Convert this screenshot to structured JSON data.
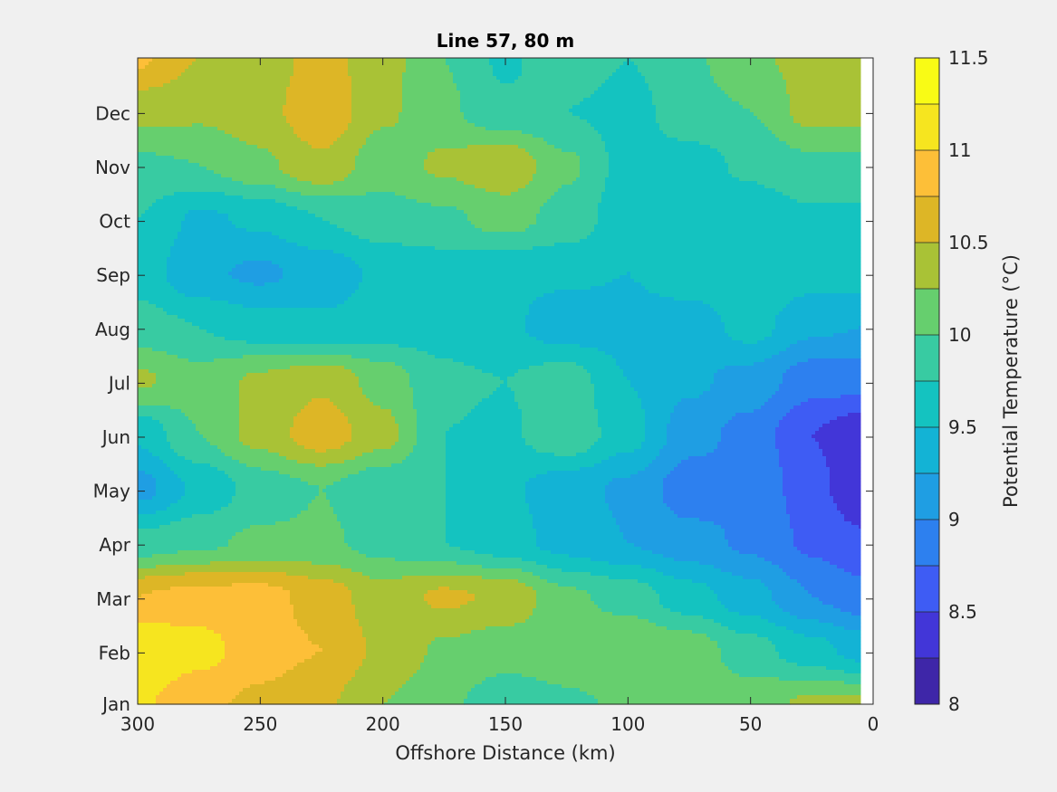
{
  "chart_data": {
    "type": "heatmap",
    "subtype": "filled-contour",
    "title": "Line 57, 80 m",
    "xlabel": "Offshore Distance (km)",
    "ylabel": "",
    "x_reversed": true,
    "xlim": [
      0,
      300
    ],
    "x_data_extent": [
      5,
      300
    ],
    "xticks": [
      300,
      250,
      200,
      150,
      100,
      50,
      0
    ],
    "ylim": [
      1,
      12.98
    ],
    "y_tick_labels": [
      "Jan",
      "Feb",
      "Mar",
      "Apr",
      "May",
      "Jun",
      "Jul",
      "Aug",
      "Sep",
      "Oct",
      "Nov",
      "Dec"
    ],
    "y_tick_values": [
      1,
      1.95,
      2.95,
      3.95,
      4.95,
      5.95,
      6.95,
      7.95,
      8.95,
      9.95,
      10.95,
      11.95
    ],
    "grid": false,
    "colorbar": {
      "label": "Potential Temperature (°C)",
      "limits": [
        8,
        11.5
      ],
      "levels": [
        8,
        8.25,
        8.5,
        8.75,
        9,
        9.25,
        9.5,
        9.75,
        10,
        10.25,
        10.5,
        10.75,
        11,
        11.25,
        11.5
      ],
      "tick_values": [
        8,
        8.5,
        9,
        9.5,
        10,
        10.5,
        11,
        11.5
      ],
      "tick_labels": [
        "8",
        "8.5",
        "9",
        "9.5",
        "10",
        "10.5",
        "11",
        "11.5"
      ],
      "colors": [
        "#3e26a8",
        "#4236d8",
        "#3e5cf4",
        "#2d80ef",
        "#1f9ee3",
        "#13b3d5",
        "#14c3c0",
        "#38cba2",
        "#66cf6e",
        "#a9c236",
        "#ddb626",
        "#fdbf38",
        "#f6e51f",
        "#f9fb15"
      ]
    },
    "x": [
      300,
      275,
      250,
      225,
      200,
      175,
      150,
      125,
      100,
      75,
      50,
      25,
      5
    ],
    "y": [
      1,
      2,
      3,
      4,
      5,
      6,
      7,
      8,
      9,
      10,
      11,
      12,
      13
    ],
    "z": [
      [
        11.05,
        10.8,
        10.7,
        10.55,
        10.25,
        10.05,
        9.85,
        9.95,
        10.05,
        10.15,
        10.15,
        10.3,
        10.3
      ],
      [
        11.25,
        11.1,
        10.85,
        10.75,
        10.45,
        10.2,
        10.1,
        10.15,
        10.25,
        10.15,
        9.85,
        9.6,
        9.4
      ],
      [
        10.75,
        10.85,
        10.85,
        10.65,
        10.35,
        10.55,
        10.45,
        10.05,
        9.9,
        9.6,
        9.35,
        9.0,
        8.85
      ],
      [
        9.85,
        9.95,
        10.05,
        10.05,
        9.9,
        9.75,
        9.6,
        9.4,
        9.25,
        9.1,
        8.95,
        8.7,
        8.55
      ],
      [
        9.15,
        9.55,
        9.85,
        10.0,
        9.8,
        9.75,
        9.55,
        9.35,
        9.2,
        8.85,
        8.95,
        8.6,
        8.3
      ],
      [
        9.55,
        10.0,
        10.35,
        10.65,
        10.35,
        9.75,
        9.7,
        9.95,
        9.6,
        9.1,
        8.9,
        8.5,
        8.3
      ],
      [
        10.3,
        10.1,
        10.3,
        10.45,
        10.15,
        9.8,
        9.75,
        9.9,
        9.5,
        9.3,
        9.15,
        8.85,
        8.85
      ],
      [
        9.85,
        9.75,
        9.6,
        9.55,
        9.6,
        9.65,
        9.55,
        9.35,
        9.4,
        9.35,
        9.6,
        9.3,
        9.25
      ],
      [
        9.65,
        9.3,
        9.2,
        9.35,
        9.55,
        9.6,
        9.55,
        9.55,
        9.5,
        9.65,
        9.75,
        9.6,
        9.6
      ],
      [
        9.75,
        9.45,
        9.55,
        9.75,
        9.9,
        9.95,
        10.1,
        9.9,
        9.6,
        9.6,
        9.6,
        9.7,
        9.7
      ],
      [
        9.95,
        10.0,
        10.2,
        10.45,
        10.1,
        10.3,
        10.45,
        10.05,
        9.65,
        9.65,
        9.8,
        9.95,
        9.95
      ],
      [
        10.35,
        10.3,
        10.4,
        10.7,
        10.3,
        10.05,
        9.8,
        9.75,
        9.65,
        9.9,
        10.0,
        10.35,
        10.35
      ],
      [
        10.8,
        10.5,
        10.35,
        10.6,
        10.35,
        10.0,
        9.7,
        9.95,
        9.75,
        9.95,
        10.2,
        10.35,
        10.35
      ]
    ]
  }
}
